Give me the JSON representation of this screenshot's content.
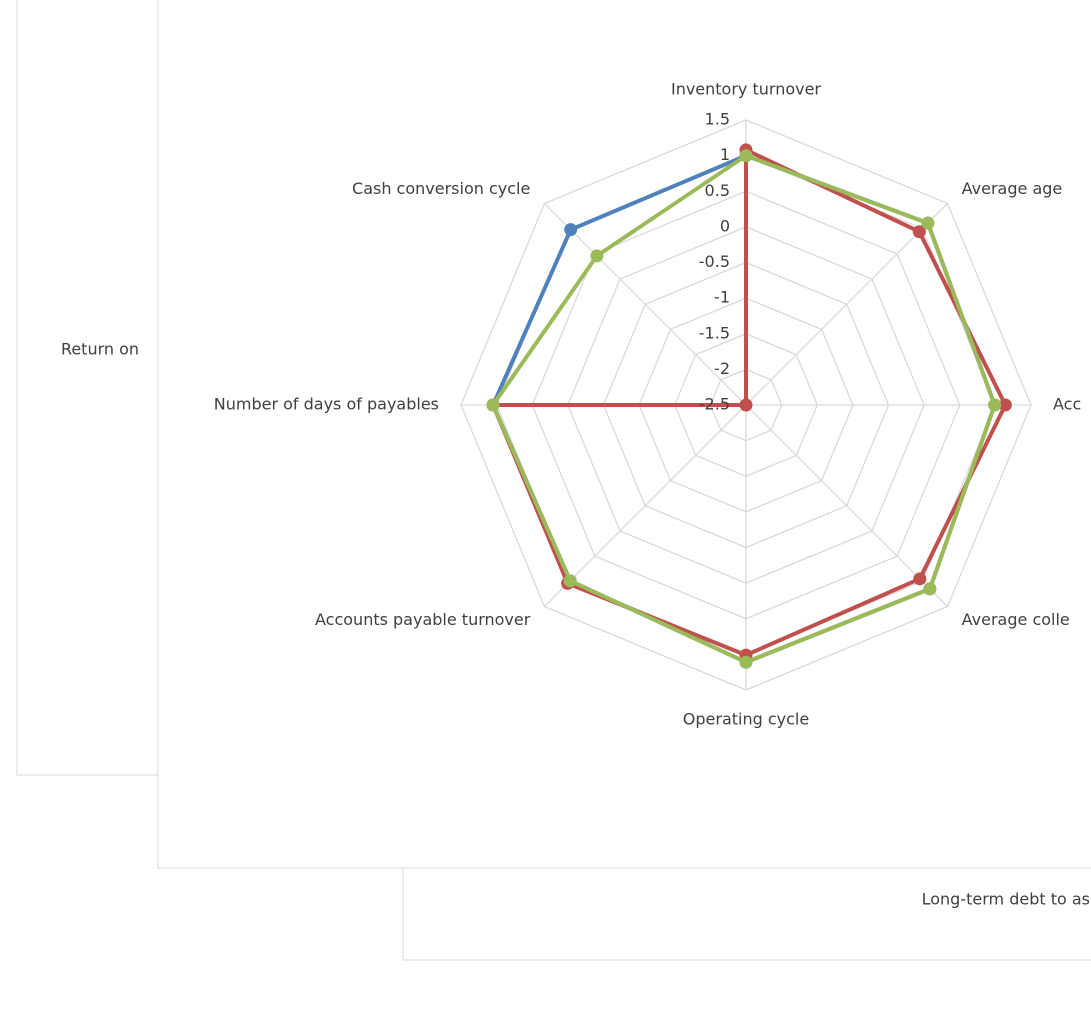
{
  "chart_data": {
    "type": "radar",
    "categories": [
      "Inventory turnover",
      "Average age",
      "Acc",
      "Average colle",
      "Operating cycle",
      "Accounts payable turnover",
      "Number of days of payables",
      "Cash conversion cycle"
    ],
    "series": [
      {
        "color": "#4f81bd",
        "values": [
          1.0,
          1.11,
          0.99,
          1.15,
          1.11,
          0.99,
          1.05,
          0.98
        ]
      },
      {
        "color": "#c0504d",
        "values": [
          1.08,
          0.94,
          1.14,
          0.95,
          1.01,
          1.04,
          1.05,
          -2.5
        ]
      },
      {
        "color": "#9bbb59",
        "values": [
          1.0,
          1.11,
          0.99,
          1.15,
          1.11,
          0.99,
          1.05,
          0.46
        ]
      }
    ],
    "ylim": [
      -2.5,
      1.5
    ],
    "yticks": [
      1.5,
      1,
      0.5,
      0,
      -0.5,
      -1,
      -1.5,
      -2,
      -2.5
    ],
    "grid": true
  },
  "background_labels": [
    "Return on",
    "Long-term debt to as"
  ]
}
